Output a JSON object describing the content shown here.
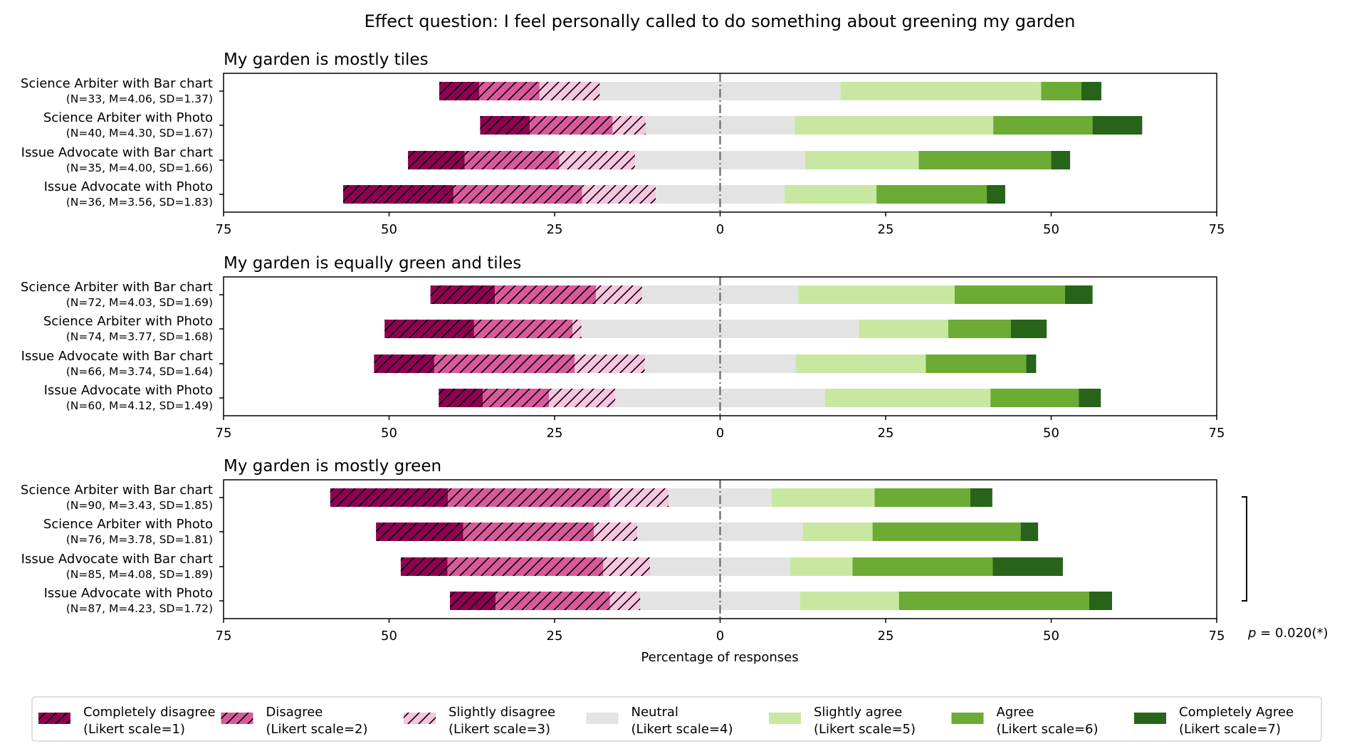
{
  "chart_data": {
    "type": "bar",
    "subtype": "diverging-stacked-horizontal",
    "title": "Effect question: I feel personally called to do something about greening my garden",
    "xlabel": "Percentage of responses",
    "xlim": [
      -75,
      75
    ],
    "xticks": [
      -75,
      -50,
      -25,
      0,
      25,
      50,
      75
    ],
    "xtick_labels": [
      "75",
      "50",
      "25",
      "0",
      "25",
      "50",
      "75"
    ],
    "center_line": "dashed at 0 (neutral split in half)",
    "grid": false,
    "legend_position": "bottom",
    "categories_order": [
      "Completely disagree",
      "Disagree",
      "Slightly disagree",
      "Neutral",
      "Slightly agree",
      "Agree",
      "Completely Agree"
    ],
    "legend": [
      {
        "label": "Completely disagree",
        "sub": "(Likert scale=1)",
        "color": "#8e0152",
        "hatched": true
      },
      {
        "label": "Disagree",
        "sub": "(Likert scale=2)",
        "color": "#d95a9c",
        "hatched": true
      },
      {
        "label": "Slightly disagree",
        "sub": "(Likert scale=3)",
        "color": "#f6c5df",
        "hatched": true
      },
      {
        "label": "Neutral",
        "sub": "(Likert scale=4)",
        "color": "#e3e3e3",
        "hatched": false
      },
      {
        "label": "Slightly agree",
        "sub": "(Likert scale=5)",
        "color": "#c8e8a1",
        "hatched": false
      },
      {
        "label": "Agree",
        "sub": "(Likert scale=6)",
        "color": "#6cab34",
        "hatched": false
      },
      {
        "label": "Completely Agree",
        "sub": "(Likert scale=7)",
        "color": "#27641a",
        "hatched": false
      }
    ],
    "panels": [
      {
        "title": "My garden is mostly tiles",
        "rows": [
          {
            "label": "Science Arbiter with Bar chart",
            "stats": "(N=33, M=4.06, SD=1.37)",
            "counts": [
              2,
              3,
              3,
              12,
              10,
              2,
              1
            ],
            "percent": [
              6.1,
              9.1,
              9.1,
              36.4,
              30.3,
              6.1,
              3.0
            ]
          },
          {
            "label": "Science Arbiter with Photo",
            "stats": "(N=40, M=4.30, SD=1.67)",
            "counts": [
              3,
              5,
              2,
              9,
              12,
              6,
              3
            ],
            "percent": [
              7.5,
              12.5,
              5.0,
              22.5,
              30.0,
              15.0,
              7.5
            ]
          },
          {
            "label": "Issue Advocate with Bar chart",
            "stats": "(N=35, M=4.00, SD=1.66)",
            "counts": [
              3,
              5,
              4,
              9,
              6,
              7,
              1
            ],
            "percent": [
              8.6,
              14.3,
              11.4,
              25.7,
              17.1,
              20.0,
              2.9
            ]
          },
          {
            "label": "Issue Advocate with Photo",
            "stats": "(N=36, M=3.56, SD=1.83)",
            "counts": [
              6,
              7,
              4,
              7,
              5,
              6,
              1
            ],
            "percent": [
              16.7,
              19.4,
              11.1,
              19.4,
              13.9,
              16.7,
              2.8
            ]
          }
        ]
      },
      {
        "title": "My garden is equally green and tiles",
        "rows": [
          {
            "label": "Science Arbiter with Bar chart",
            "stats": "(N=72, M=4.03, SD=1.69)",
            "counts": [
              7,
              11,
              5,
              17,
              17,
              12,
              3
            ],
            "percent": [
              9.7,
              15.3,
              6.9,
              23.6,
              23.6,
              16.7,
              4.2
            ]
          },
          {
            "label": "Science Arbiter with Photo",
            "stats": "(N=74, M=3.77, SD=1.68)",
            "counts": [
              10,
              11,
              1,
              31,
              10,
              7,
              4
            ],
            "percent": [
              13.5,
              14.9,
              1.4,
              41.9,
              13.5,
              9.5,
              5.4
            ]
          },
          {
            "label": "Issue Advocate with Bar chart",
            "stats": "(N=66, M=3.74, SD=1.64)",
            "counts": [
              6,
              14,
              7,
              15,
              13,
              10,
              1
            ],
            "percent": [
              9.1,
              21.2,
              10.6,
              22.7,
              19.7,
              15.2,
              1.5
            ]
          },
          {
            "label": "Issue Advocate with Photo",
            "stats": "(N=60, M=4.12, SD=1.49)",
            "counts": [
              4,
              6,
              6,
              19,
              15,
              8,
              2
            ],
            "percent": [
              6.7,
              10.0,
              10.0,
              31.7,
              25.0,
              13.3,
              3.3
            ]
          }
        ]
      },
      {
        "title": "My garden is mostly green",
        "significance": {
          "text": "p = 0.020(*)",
          "spans_rows": "all"
        },
        "rows": [
          {
            "label": "Science Arbiter with Bar chart",
            "stats": "(N=90, M=3.43, SD=1.85)",
            "counts": [
              16,
              22,
              8,
              14,
              14,
              13,
              3
            ],
            "percent": [
              17.8,
              24.4,
              8.9,
              15.6,
              15.6,
              14.4,
              3.3
            ]
          },
          {
            "label": "Science Arbiter with Photo",
            "stats": "(N=76, M=3.78, SD=1.81)",
            "counts": [
              10,
              15,
              5,
              19,
              8,
              17,
              2
            ],
            "percent": [
              13.2,
              19.7,
              6.6,
              25.0,
              10.5,
              22.4,
              2.6
            ]
          },
          {
            "label": "Issue Advocate with Bar chart",
            "stats": "(N=85, M=4.08, SD=1.89)",
            "counts": [
              6,
              20,
              6,
              18,
              8,
              18,
              9
            ],
            "percent": [
              7.1,
              23.5,
              7.1,
              21.2,
              9.4,
              21.2,
              10.6
            ]
          },
          {
            "label": "Issue Advocate with Photo",
            "stats": "(N=87, M=4.23, SD=1.72)",
            "counts": [
              6,
              15,
              4,
              21,
              13,
              25,
              3
            ],
            "percent": [
              6.9,
              17.2,
              4.6,
              24.1,
              14.9,
              28.7,
              3.4
            ]
          }
        ]
      }
    ],
    "significance_label_p": "p",
    "significance_label_rest": " = 0.020(*)"
  }
}
